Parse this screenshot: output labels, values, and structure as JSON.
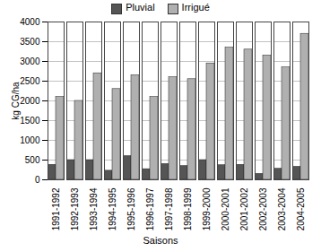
{
  "chart_data": {
    "type": "bar",
    "y_label": "kg CG/ha",
    "x_label": "Saisons",
    "categories": [
      "1991-1992",
      "1992-1993",
      "1993-1994",
      "1994-1995",
      "1995-1996",
      "1996-1997",
      "1997-1998",
      "1998-1999",
      "1999-2000",
      "2000-2001",
      "2001-2002",
      "2002-2003",
      "2003-2004",
      "2004-2005"
    ],
    "series": [
      {
        "name": "Pluvial",
        "color": "#555555",
        "values": [
          380,
          500,
          500,
          230,
          600,
          270,
          400,
          350,
          500,
          370,
          380,
          150,
          280,
          330
        ]
      },
      {
        "name": "Irrigué",
        "color": "#b0b0b0",
        "values": [
          2100,
          2000,
          2700,
          2300,
          2650,
          2100,
          2600,
          2550,
          2950,
          3350,
          3300,
          3150,
          2850,
          3700
        ]
      }
    ],
    "ylim": [
      0,
      4000
    ],
    "yticks": [
      0,
      500,
      1000,
      1500,
      2000,
      2500,
      3000,
      3500,
      4000
    ],
    "grid": true,
    "legend": "top"
  }
}
